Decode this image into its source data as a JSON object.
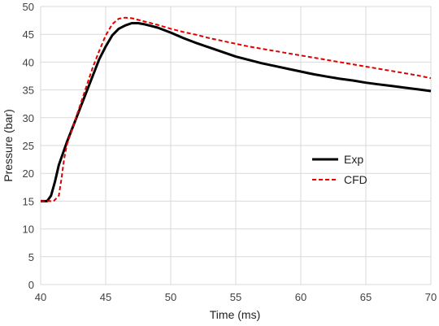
{
  "chart_data": {
    "type": "line",
    "xlabel": "Time  (ms)",
    "ylabel": "Pressure (bar)",
    "xlim": [
      40,
      70
    ],
    "ylim": [
      0,
      50
    ],
    "xticks": [
      40,
      45,
      50,
      55,
      60,
      65,
      70
    ],
    "yticks": [
      0,
      5,
      10,
      15,
      20,
      25,
      30,
      35,
      40,
      45,
      50
    ],
    "grid": "both",
    "legend_position": "right-middle",
    "series": [
      {
        "name": "Exp",
        "color": "#000000",
        "style": "solid",
        "x": [
          40,
          40.5,
          40.8,
          41.1,
          41.4,
          41.7,
          42.0,
          42.5,
          43.0,
          43.5,
          44.0,
          44.5,
          45.0,
          45.5,
          46.0,
          46.5,
          47.0,
          47.5,
          48.0,
          48.5,
          49.0,
          50.0,
          51.0,
          52.0,
          53.0,
          54.0,
          55.0,
          56.0,
          57.0,
          58.0,
          59.0,
          60.0,
          61.0,
          62.0,
          63.0,
          64.0,
          65.0,
          66.0,
          67.0,
          68.0,
          69.0,
          70.0
        ],
        "y": [
          15.0,
          15.0,
          16.0,
          18.5,
          21.5,
          23.5,
          25.5,
          28.5,
          31.5,
          34.5,
          37.5,
          40.5,
          42.8,
          44.8,
          46.0,
          46.6,
          47.0,
          47.0,
          46.8,
          46.5,
          46.2,
          45.3,
          44.3,
          43.4,
          42.6,
          41.8,
          41.0,
          40.4,
          39.8,
          39.3,
          38.8,
          38.3,
          37.8,
          37.4,
          37.0,
          36.7,
          36.3,
          36.0,
          35.7,
          35.4,
          35.1,
          34.8
        ]
      },
      {
        "name": "CFD",
        "color": "#e00000",
        "style": "dashed",
        "x": [
          40,
          41.0,
          41.4,
          41.6,
          41.8,
          42.0,
          42.5,
          43.0,
          43.5,
          44.0,
          44.5,
          45.0,
          45.5,
          46.0,
          46.5,
          47.0,
          47.5,
          48.0,
          49.0,
          50.0,
          51.0,
          52.0,
          53.0,
          54.0,
          55.0,
          56.0,
          57.0,
          58.0,
          59.0,
          60.0,
          61.0,
          62.0,
          63.0,
          64.0,
          65.0,
          66.0,
          67.0,
          68.0,
          69.0,
          70.0
        ],
        "y": [
          15.0,
          15.0,
          16.0,
          19.0,
          22.5,
          25.0,
          28.5,
          32.0,
          35.5,
          39.0,
          42.0,
          44.8,
          46.8,
          47.8,
          48.0,
          47.9,
          47.6,
          47.3,
          46.7,
          46.0,
          45.4,
          44.9,
          44.3,
          43.8,
          43.3,
          42.8,
          42.4,
          42.0,
          41.6,
          41.2,
          40.8,
          40.4,
          40.0,
          39.6,
          39.2,
          38.8,
          38.4,
          38.0,
          37.6,
          37.1
        ]
      }
    ]
  }
}
